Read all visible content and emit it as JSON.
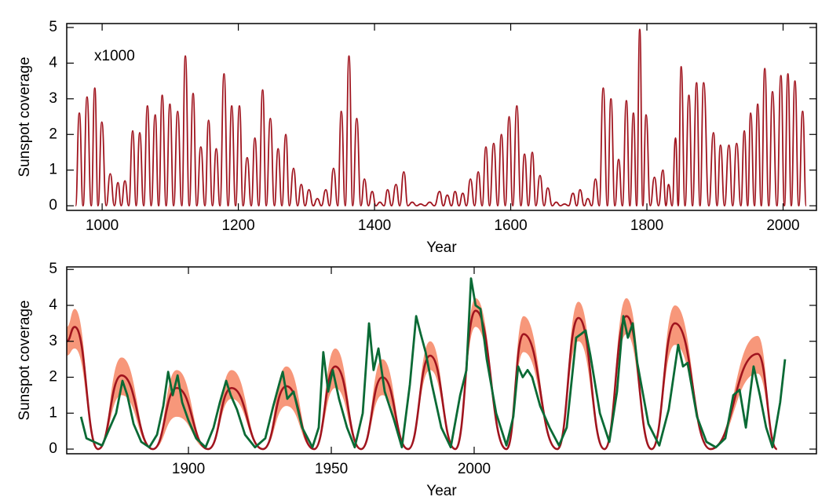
{
  "chart_data": [
    {
      "type": "line",
      "annotation": "x1000",
      "xlabel": "Year",
      "ylabel": "Sunspot coverage",
      "xlim": [
        948,
        2049
      ],
      "ylim": [
        -0.13,
        5.11
      ],
      "xticks": [
        1000,
        1200,
        1400,
        1600,
        1800,
        2000
      ],
      "yticks": [
        0,
        1,
        2,
        3,
        4,
        5
      ],
      "series": [
        {
          "color": "#a0141e",
          "x": [
            961,
            966.5,
            972,
            977.8,
            984,
            989.2,
            994,
            999.5,
            1006,
            1011.9,
            1018,
            1023.2,
            1028,
            1033.5,
            1039,
            1044.9,
            1050,
            1055.2,
            1061,
            1066.5,
            1072,
            1077.9,
            1083,
            1088.2,
            1094,
            1099.5,
            1105,
            1110.9,
            1117,
            1122.2,
            1128,
            1133.6,
            1139,
            1144.9,
            1151,
            1156.3,
            1162,
            1167.6,
            1173,
            1179.0,
            1185,
            1190.3,
            1196,
            1201.6,
            1207,
            1213.0,
            1219,
            1224.3,
            1230,
            1235.7,
            1241,
            1247.0,
            1253,
            1258.4,
            1264,
            1269.7,
            1275,
            1281.1,
            1287,
            1292.4,
            1298,
            1303.7,
            1310,
            1316.1,
            1322,
            1328.5,
            1334,
            1339.8,
            1346,
            1351.2,
            1357,
            1362.5,
            1368,
            1373.9,
            1380,
            1385.2,
            1391,
            1396.6,
            1402,
            1407.9,
            1414,
            1419.2,
            1425,
            1431.6,
            1437,
            1443.0,
            1449,
            1455.3,
            1462,
            1467.7,
            1474,
            1481.1,
            1488,
            1495.6,
            1501,
            1506.9,
            1513,
            1518.3,
            1524,
            1529.6,
            1535,
            1540.9,
            1547,
            1552.3,
            1558,
            1563.6,
            1569,
            1575.0,
            1581,
            1586.3,
            1592,
            1597.7,
            1603,
            1609.0,
            1615,
            1620.3,
            1626,
            1631.7,
            1637,
            1643.0,
            1649,
            1654.4,
            1661,
            1666.8,
            1673,
            1679.1,
            1685,
            1691.5,
            1697,
            1701.8,
            1708,
            1713.2,
            1719,
            1724.5,
            1730,
            1735.9,
            1742,
            1747.2,
            1753,
            1758.5,
            1764,
            1769.9,
            1775,
            1780.2,
            1785,
            1789.5,
            1794,
            1798.8,
            1805,
            1811.1,
            1817,
            1823.5,
            1828,
            1831.8,
            1837,
            1842.1,
            1846,
            1850.3,
            1856,
            1861.7,
            1867,
            1873.0,
            1878,
            1883.3,
            1891,
            1897.8,
            1903,
            1908.1,
            1914,
            1920.5,
            1926,
            1931.8,
            1938,
            1943.1,
            1948,
            1952.4,
            1958,
            1962.7,
            1968,
            1973.1,
            1979,
            1984.4,
            1991,
            1996.8,
            2002,
            2007.1,
            2012,
            2017.4,
            2023,
            2028.7,
            2034
          ],
          "values": [
            0,
            2.6,
            0,
            3.05,
            0,
            3.3,
            0,
            2.35,
            0,
            0.9,
            0,
            0.65,
            0,
            0.7,
            0,
            2.1,
            0,
            2.05,
            0,
            2.8,
            0,
            2.55,
            0,
            3.1,
            0,
            2.85,
            0,
            2.65,
            0,
            4.2,
            0,
            3.15,
            0,
            1.65,
            0,
            2.4,
            0,
            1.6,
            0,
            3.7,
            0,
            2.8,
            0,
            2.8,
            0,
            1.35,
            0,
            1.9,
            0,
            3.25,
            0,
            2.45,
            0,
            1.6,
            0,
            2.0,
            0,
            1.05,
            0,
            0.6,
            0,
            0.45,
            0,
            0.2,
            0,
            0.45,
            0,
            1.05,
            0,
            2.65,
            0,
            4.2,
            0,
            2.45,
            0,
            0.75,
            0,
            0.4,
            0,
            0.1,
            0,
            0.45,
            0,
            0.6,
            0,
            0.95,
            0,
            0.1,
            0,
            0.05,
            0,
            0.1,
            0,
            0.4,
            0,
            0.3,
            0,
            0.4,
            0,
            0.35,
            0,
            0.75,
            0,
            0.95,
            0,
            1.65,
            0,
            1.75,
            0,
            2.0,
            0,
            2.5,
            0,
            2.8,
            0,
            1.45,
            0,
            1.5,
            0,
            0.85,
            0,
            0.5,
            0,
            0.1,
            0,
            0.05,
            0,
            0.35,
            0,
            0.45,
            0,
            0.2,
            0,
            0.75,
            0,
            3.3,
            0,
            3.0,
            0,
            1.3,
            0,
            2.95,
            0,
            2.6,
            0,
            4.95,
            0,
            2.55,
            0,
            0.8,
            0,
            1.0,
            0,
            0.6,
            0,
            1.9,
            0,
            3.9,
            0,
            3.1,
            0,
            3.45,
            0,
            3.45,
            0,
            2.05,
            0,
            1.7,
            0,
            1.7,
            0,
            1.75,
            0,
            2.1,
            0,
            2.6,
            0,
            2.85,
            0,
            3.85,
            0,
            3.2,
            0,
            3.65,
            0,
            3.7,
            0,
            3.5,
            0,
            2.65,
            0
          ]
        }
      ]
    },
    {
      "type": "line",
      "xlabel": "Year",
      "ylabel": "Sunspot coverage",
      "xlim": [
        1857.4,
        2119.8
      ],
      "ylim": [
        -0.13,
        5.07
      ],
      "xticks": [
        1900,
        1950,
        2000
      ],
      "yticks": [
        0,
        1,
        2,
        3,
        4,
        5
      ],
      "band": {
        "color": "#f7977a",
        "x": [
          1857.4,
          1860.2,
          1868.4,
          1876.6,
          1887.6,
          1895.9,
          1906.9,
          1915.1,
          1926.1,
          1934.3,
          1944.0,
          1951.4,
          1960.4,
          1967.9,
          1976.9,
          1984.6,
          1993.4,
          2000.5,
          2011.3,
          2017.3,
          2029.1,
          2036.5,
          2045.6,
          2053.3,
          2062.1,
          2070.3,
          2082.7,
          2099.2,
          2106.0
        ],
        "upper": [
          3.4,
          3.9,
          0,
          2.55,
          0,
          2.2,
          0,
          2.2,
          0,
          2.3,
          0,
          2.8,
          0,
          2.5,
          0,
          3.0,
          0,
          4.2,
          0,
          3.7,
          0,
          4.1,
          0,
          4.2,
          0,
          4.0,
          0,
          3.15,
          0
        ],
        "lower": [
          2.6,
          2.8,
          0,
          1.5,
          0,
          0.9,
          0,
          1.4,
          0,
          1.2,
          0,
          1.7,
          0,
          1.5,
          0,
          2.2,
          0,
          3.4,
          0,
          2.7,
          0,
          3.0,
          0,
          3.2,
          0,
          2.9,
          0,
          2.1,
          0
        ]
      },
      "series": [
        {
          "color": "#a0141e",
          "x": [
            1857.4,
            1860.2,
            1868.4,
            1876.6,
            1887.6,
            1895.9,
            1906.9,
            1915.1,
            1926.1,
            1934.3,
            1944.0,
            1951.4,
            1960.4,
            1967.9,
            1976.9,
            1984.6,
            1993.4,
            2000.5,
            2011.3,
            2017.3,
            2029.1,
            2036.5,
            2045.6,
            2053.3,
            2062.1,
            2070.3,
            2082.7,
            2099.2,
            2106.0
          ],
          "values": [
            3.0,
            3.4,
            0,
            2.05,
            0,
            1.7,
            0,
            1.7,
            0,
            1.75,
            0,
            2.3,
            0,
            2.0,
            0,
            2.6,
            0,
            3.85,
            0,
            3.2,
            0,
            3.65,
            0,
            3.7,
            0,
            3.5,
            0,
            2.65,
            0
          ]
        },
        {
          "color": "#0a6a35",
          "x": [
            1862.4,
            1864.3,
            1867.0,
            1869.8,
            1872.5,
            1874.7,
            1876.9,
            1878.6,
            1880.8,
            1883.5,
            1886.3,
            1889.0,
            1891.2,
            1892.9,
            1894.5,
            1896.2,
            1897.8,
            1900.0,
            1902.7,
            1906.0,
            1908.8,
            1911.0,
            1913.2,
            1914.8,
            1917.0,
            1919.8,
            1923.3,
            1926.9,
            1929.7,
            1931.9,
            1933.0,
            1934.6,
            1936.8,
            1939.8,
            1943.4,
            1945.6,
            1947.2,
            1948.9,
            1950.5,
            1952.7,
            1955.5,
            1958.2,
            1961.0,
            1963.2,
            1964.8,
            1966.5,
            1968.7,
            1972.0,
            1974.7,
            1977.5,
            1979.7,
            1981.3,
            1983.0,
            1985.2,
            1988.5,
            1991.8,
            1995.1,
            1997.3,
            1998.9,
            2000.5,
            2002.2,
            2004.4,
            2007.7,
            2011.3,
            2013.7,
            2015.4,
            2017.0,
            2018.7,
            2020.3,
            2023.1,
            2026.4,
            2029.7,
            2032.4,
            2035.7,
            2037.4,
            2039.0,
            2040.7,
            2044.0,
            2047.3,
            2050.0,
            2052.2,
            2053.8,
            2055.5,
            2057.1,
            2061.0,
            2064.8,
            2068.1,
            2071.4,
            2073.1,
            2074.7,
            2078.0,
            2081.3,
            2084.6,
            2087.9,
            2090.7,
            2092.9,
            2095.1,
            2097.8,
            2100.0,
            2102.2,
            2104.4,
            2107.1,
            2108.8
          ],
          "values": [
            0.9,
            0.3,
            0.2,
            0.1,
            0.6,
            1.0,
            1.9,
            1.5,
            0.7,
            0.2,
            0.05,
            0.4,
            1.2,
            2.15,
            1.5,
            2.05,
            1.3,
            0.8,
            0.3,
            0.05,
            0.6,
            1.3,
            1.9,
            1.5,
            1.1,
            0.4,
            0.05,
            0.3,
            1.2,
            1.85,
            2.15,
            1.4,
            1.6,
            0.6,
            0.05,
            0.6,
            2.7,
            1.6,
            2.2,
            1.4,
            0.6,
            0.05,
            1.0,
            3.5,
            2.2,
            2.8,
            1.6,
            0.8,
            0.05,
            1.8,
            3.7,
            3.2,
            2.7,
            1.8,
            0.6,
            0.05,
            1.5,
            2.2,
            4.75,
            4.0,
            3.9,
            2.5,
            1.0,
            0.1,
            0.9,
            2.3,
            2.0,
            2.2,
            2.0,
            1.2,
            0.6,
            0.1,
            0.6,
            3.1,
            3.2,
            3.3,
            2.6,
            1.0,
            0.2,
            1.6,
            3.7,
            3.1,
            3.5,
            2.4,
            0.7,
            0.1,
            1.1,
            2.9,
            2.3,
            2.4,
            0.9,
            0.2,
            0.05,
            0.3,
            1.5,
            1.65,
            0.6,
            2.3,
            1.5,
            0.6,
            0.05,
            1.3,
            2.5
          ]
        }
      ]
    }
  ]
}
